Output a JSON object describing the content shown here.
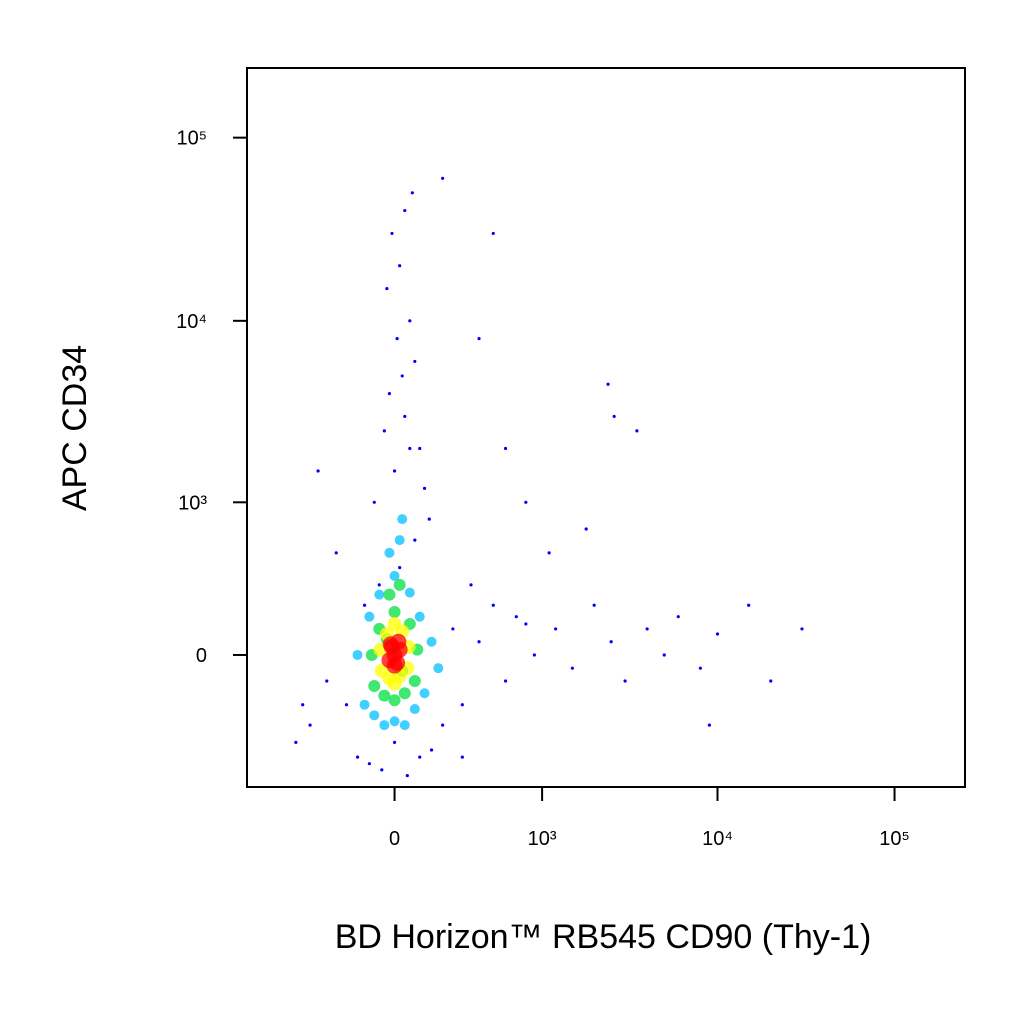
{
  "chart_data": {
    "type": "scatter",
    "x_label": "BD Horizon™ RB545 CD90 (Thy-1)",
    "y_label": "APC CD34",
    "xscale": "biexponential",
    "yscale": "biexponential",
    "xlim": [
      -1000,
      250000
    ],
    "ylim": [
      -760,
      240000
    ],
    "xticks": [
      0,
      {
        "value": 1000,
        "label": "10³"
      },
      {
        "value": 10000,
        "label": "10⁴"
      },
      {
        "value": 100000,
        "label": "10⁵"
      }
    ],
    "yticks": [
      0,
      {
        "value": 1000,
        "label": "10³"
      },
      {
        "value": 10000,
        "label": "10⁴"
      },
      {
        "value": 100000,
        "label": "10⁵"
      }
    ],
    "series": [
      {
        "color": "#0000ff",
        "x": [
          -150,
          -100,
          -50,
          0,
          50,
          100,
          150,
          200,
          -120,
          -60,
          20,
          80,
          140,
          -80,
          0,
          60,
          120,
          -40,
          40,
          100,
          -20,
          30,
          80,
          10,
          60,
          -30,
          20,
          -10,
          40,
          70,
          -200,
          -300,
          -400,
          -500,
          250,
          300,
          350,
          400,
          500,
          600,
          700,
          900,
          1200,
          1500,
          2000,
          2500,
          3000,
          4000,
          5000,
          6000,
          8000,
          10000,
          15000,
          20000,
          30000,
          800,
          1100,
          1800,
          2600,
          3500,
          9000,
          600,
          400,
          200,
          -250,
          -350,
          -450,
          800,
          2400,
          300,
          500
        ],
        "y": [
          -500,
          -550,
          -600,
          -400,
          -650,
          -500,
          -450,
          -300,
          200,
          300,
          400,
          600,
          800,
          1000,
          1500,
          2000,
          1200,
          2500,
          3000,
          2000,
          4000,
          5000,
          6000,
          8000,
          10000,
          15000,
          20000,
          30000,
          40000,
          50000,
          -200,
          -100,
          -300,
          -400,
          100,
          -200,
          300,
          50,
          200,
          -100,
          150,
          0,
          100,
          -50,
          200,
          50,
          -100,
          100,
          0,
          150,
          -50,
          80,
          200,
          -100,
          100,
          1000,
          500,
          700,
          3000,
          2500,
          -300,
          2000,
          8000,
          60000,
          500,
          1500,
          -200,
          120,
          4500,
          -500,
          30000
        ]
      },
      {
        "color": "#00bfff",
        "x": [
          -120,
          -80,
          -40,
          0,
          40,
          80,
          120,
          -100,
          100,
          -60,
          60,
          0,
          -20,
          20,
          150,
          -150,
          180,
          30
        ],
        "y": [
          -200,
          -250,
          -300,
          -280,
          -300,
          -220,
          -150,
          150,
          150,
          250,
          260,
          350,
          500,
          600,
          50,
          0,
          -50,
          800
        ]
      },
      {
        "color": "#00e040",
        "x": [
          -80,
          -40,
          0,
          40,
          80,
          -90,
          90,
          -60,
          60,
          0,
          -20,
          20,
          30,
          -30
        ],
        "y": [
          -120,
          -160,
          -180,
          -150,
          -100,
          0,
          20,
          100,
          120,
          170,
          250,
          300,
          -60,
          60
        ]
      },
      {
        "color": "#ffff00",
        "x": [
          -50,
          -20,
          20,
          50,
          -55,
          55,
          -30,
          30,
          0,
          0
        ],
        "y": [
          -60,
          -90,
          -80,
          -50,
          20,
          30,
          80,
          90,
          120,
          -110
        ]
      },
      {
        "color": "#ff0000",
        "x": [
          -20,
          0,
          20,
          -10,
          10,
          0,
          15,
          -15
        ],
        "y": [
          -20,
          0,
          20,
          30,
          -30,
          -40,
          50,
          40
        ]
      }
    ]
  }
}
